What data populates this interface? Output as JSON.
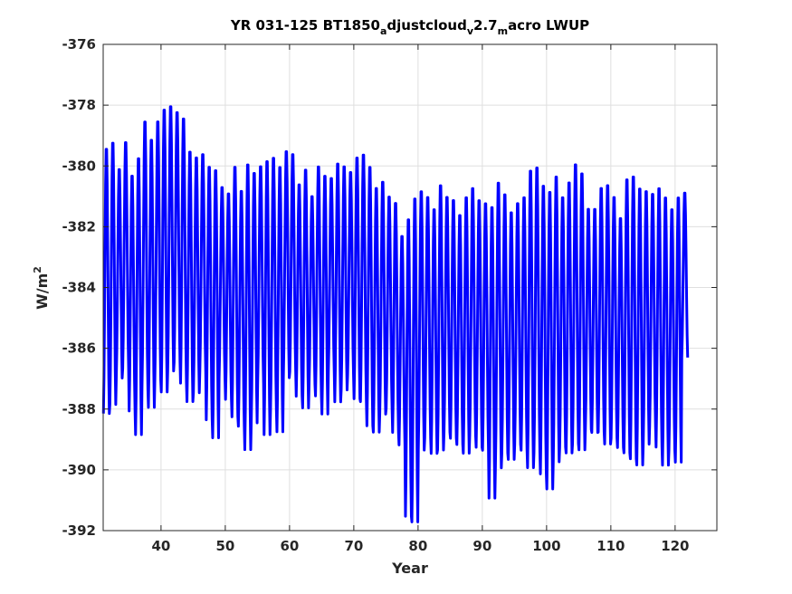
{
  "chart_data": {
    "type": "line",
    "title_parts": {
      "main": "YR 031-125 BT1850",
      "sub1": "a",
      "mid1": "djustcloud",
      "sub2": "v",
      "mid2": "2.7",
      "sub3": "m",
      "tail": "acro LWUP"
    },
    "xlabel": "Year",
    "ylabel_base": "W/m",
    "ylabel_sup": "2",
    "xlim": [
      31,
      126.5
    ],
    "ylim": [
      -392,
      -376
    ],
    "xticks": [
      40,
      50,
      60,
      70,
      80,
      90,
      100,
      110,
      120
    ],
    "yticks": [
      -376,
      -378,
      -380,
      -382,
      -384,
      -386,
      -388,
      -390,
      -392
    ],
    "grid": true,
    "series_color": "#0000ff",
    "series": [
      {
        "x_start": 31.04,
        "x_step": 0.0833333,
        "annual_max": [
          -379.3,
          -379.1,
          -380.0,
          -379.1,
          -380.2,
          -379.6,
          -378.4,
          -379.0,
          -378.4,
          -378.0,
          -377.9,
          -378.1,
          -378.3,
          -379.4,
          -379.6,
          -379.5,
          -379.9,
          -380.0,
          -380.6,
          -380.8,
          -379.9,
          -380.7,
          -379.8,
          -380.1,
          -379.9,
          -379.7,
          -379.6,
          -379.9,
          -379.4,
          -379.5,
          -380.5,
          -380.0,
          -380.9,
          -379.9,
          -380.2,
          -380.3,
          -379.8,
          -379.9,
          -380.1,
          -379.6,
          -379.5,
          -379.9,
          -380.6,
          -380.4,
          -380.9,
          -381.1,
          -382.2,
          -381.6,
          -380.9,
          -380.7,
          -380.9,
          -381.3,
          -380.5,
          -380.9,
          -381.0,
          -381.5,
          -380.9,
          -380.6,
          -381.0,
          -381.1,
          -381.2,
          -380.4,
          -380.8,
          -381.4,
          -381.1,
          -380.9,
          -380.0,
          -379.9,
          -380.5,
          -380.7,
          -380.2,
          -380.9,
          -380.4,
          -379.8,
          -380.1,
          -381.3,
          -381.3,
          -380.6,
          -380.5,
          -380.9,
          -381.6,
          -380.3,
          -380.2,
          -380.6,
          -380.7,
          -380.8,
          -380.6,
          -380.9,
          -381.3,
          -380.9,
          -380.8
        ],
        "annual_min": [
          -388.3,
          -388.0,
          -387.1,
          -386.8,
          -388.2,
          -389.0,
          -387.5,
          -388.1,
          -387.2,
          -387.6,
          -386.9,
          -386.6,
          -387.3,
          -387.9,
          -387.6,
          -386.9,
          -388.5,
          -389.1,
          -387.1,
          -387.8,
          -388.4,
          -388.7,
          -389.5,
          -388.6,
          -387.3,
          -389.0,
          -388.2,
          -388.9,
          -387.1,
          -386.9,
          -387.7,
          -388.1,
          -387.3,
          -387.7,
          -388.3,
          -386.9,
          -387.9,
          -387.5,
          -387.0,
          -387.8,
          -387.9,
          -388.7,
          -388.9,
          -388.3,
          -388.1,
          -388.9,
          -389.3,
          -391.7,
          -391.9,
          -389.5,
          -389.1,
          -389.6,
          -389.5,
          -388.9,
          -389.1,
          -389.3,
          -389.6,
          -389.0,
          -389.4,
          -389.5,
          -391.1,
          -390.1,
          -389.6,
          -389.8,
          -389.3,
          -389.5,
          -390.1,
          -389.6,
          -390.3,
          -390.8,
          -389.9,
          -389.4,
          -389.6,
          -389.3,
          -389.5,
          -388.8,
          -388.9,
          -388.9,
          -389.3,
          -389.1,
          -389.4,
          -389.6,
          -389.8,
          -390.0,
          -389.3,
          -388.7,
          -389.4,
          -390.0,
          -389.5,
          -389.9,
          -386.4
        ]
      }
    ]
  }
}
